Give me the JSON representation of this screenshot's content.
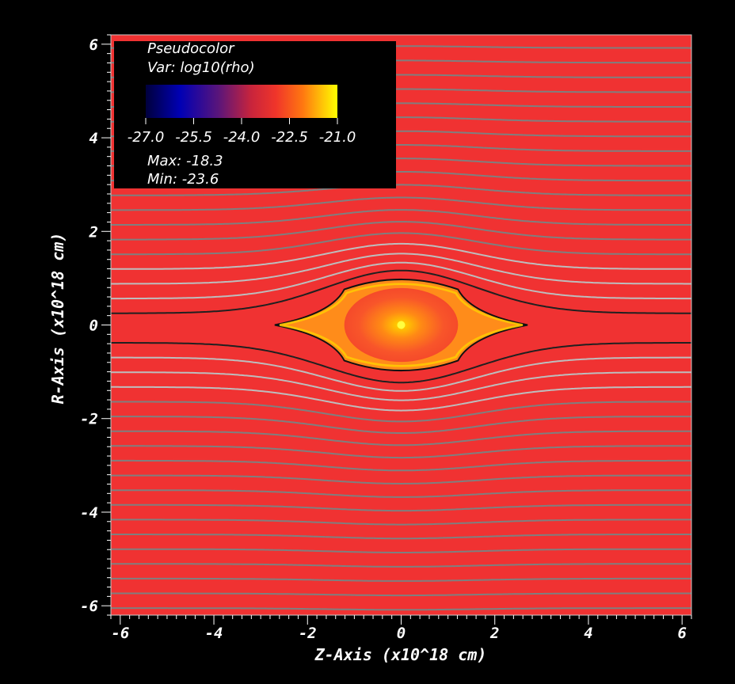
{
  "chart_data": {
    "type": "heatmap",
    "xlabel": "Z-Axis (x10^18 cm)",
    "ylabel": "R-Axis (x10^18 cm)",
    "xlim": [
      -6.2,
      6.2
    ],
    "ylim": [
      -6.2,
      6.2
    ],
    "x_ticks": [
      "-6",
      "-4",
      "-2",
      "0",
      "2",
      "4",
      "6"
    ],
    "y_ticks": [
      "6",
      "4",
      "2",
      "0",
      "-2",
      "-4",
      "-6"
    ],
    "legend": {
      "plot_type": "Pseudocolor",
      "variable": "Var: log10(rho)",
      "colorbar_ticks": [
        "-27.0",
        "-25.5",
        "-24.0",
        "-22.5",
        "-21.0"
      ],
      "max": "Max: -18.3",
      "min": "Min: -23.6",
      "colormap": [
        "#000060",
        "#0000b0",
        "#5a157a",
        "#b01e4a",
        "#f0352a",
        "#ff6a10",
        "#ffb000",
        "#ffff00"
      ]
    },
    "background_color": "#f03232",
    "streamline_color": "#7f7f7f",
    "feature": {
      "description_values": {
        "center_z": 0,
        "center_r": 0,
        "half_width_z": 2.7,
        "half_height_r": 0.95
      }
    }
  }
}
